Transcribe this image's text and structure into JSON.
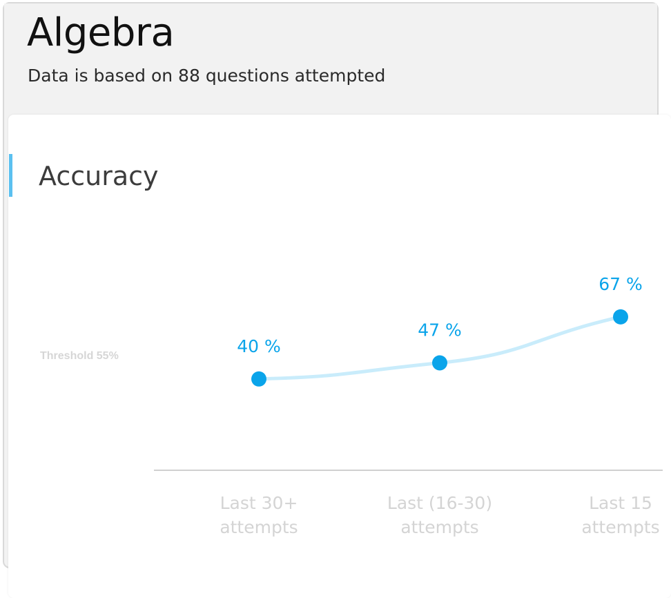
{
  "header": {
    "title": "Algebra",
    "subtitle": "Data is based on 88 questions attempted"
  },
  "section": {
    "title": "Accuracy"
  },
  "colors": {
    "point": "#0aa4ea",
    "line": "#c9ecfb",
    "accent": "#5bc0f0",
    "axis": "#d0d0d0",
    "tick_text": "#d4d4d4",
    "threshold_text": "#d6d6d6"
  },
  "chart_data": {
    "type": "line",
    "categories": [
      [
        "Last 30+",
        "attempts"
      ],
      [
        "Last (16-30)",
        "attempts"
      ],
      [
        "Last 15",
        "attempts"
      ]
    ],
    "values": [
      40,
      47,
      67
    ],
    "data_labels": [
      "40 %",
      "47 %",
      "67 %"
    ],
    "threshold": {
      "value": 55,
      "label": "Threshold 55%"
    },
    "ylim": [
      0,
      100
    ]
  }
}
